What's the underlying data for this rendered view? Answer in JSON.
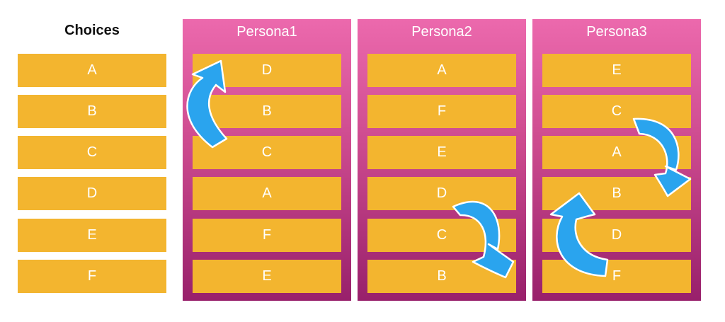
{
  "choices": {
    "title": "Choices",
    "items": [
      "A",
      "B",
      "C",
      "D",
      "E",
      "F"
    ]
  },
  "personas": [
    {
      "name": "Persona1",
      "ranking": [
        "D",
        "B",
        "C",
        "A",
        "F",
        "E"
      ]
    },
    {
      "name": "Persona2",
      "ranking": [
        "A",
        "F",
        "E",
        "D",
        "C",
        "B"
      ]
    },
    {
      "name": "Persona3",
      "ranking": [
        "E",
        "C",
        "A",
        "B",
        "D",
        "F"
      ]
    }
  ],
  "colors": {
    "cell": "#f3b52f",
    "persona_top": "#ec69ad",
    "persona_bottom": "#98206b",
    "arrow": "#2aa4ee"
  }
}
